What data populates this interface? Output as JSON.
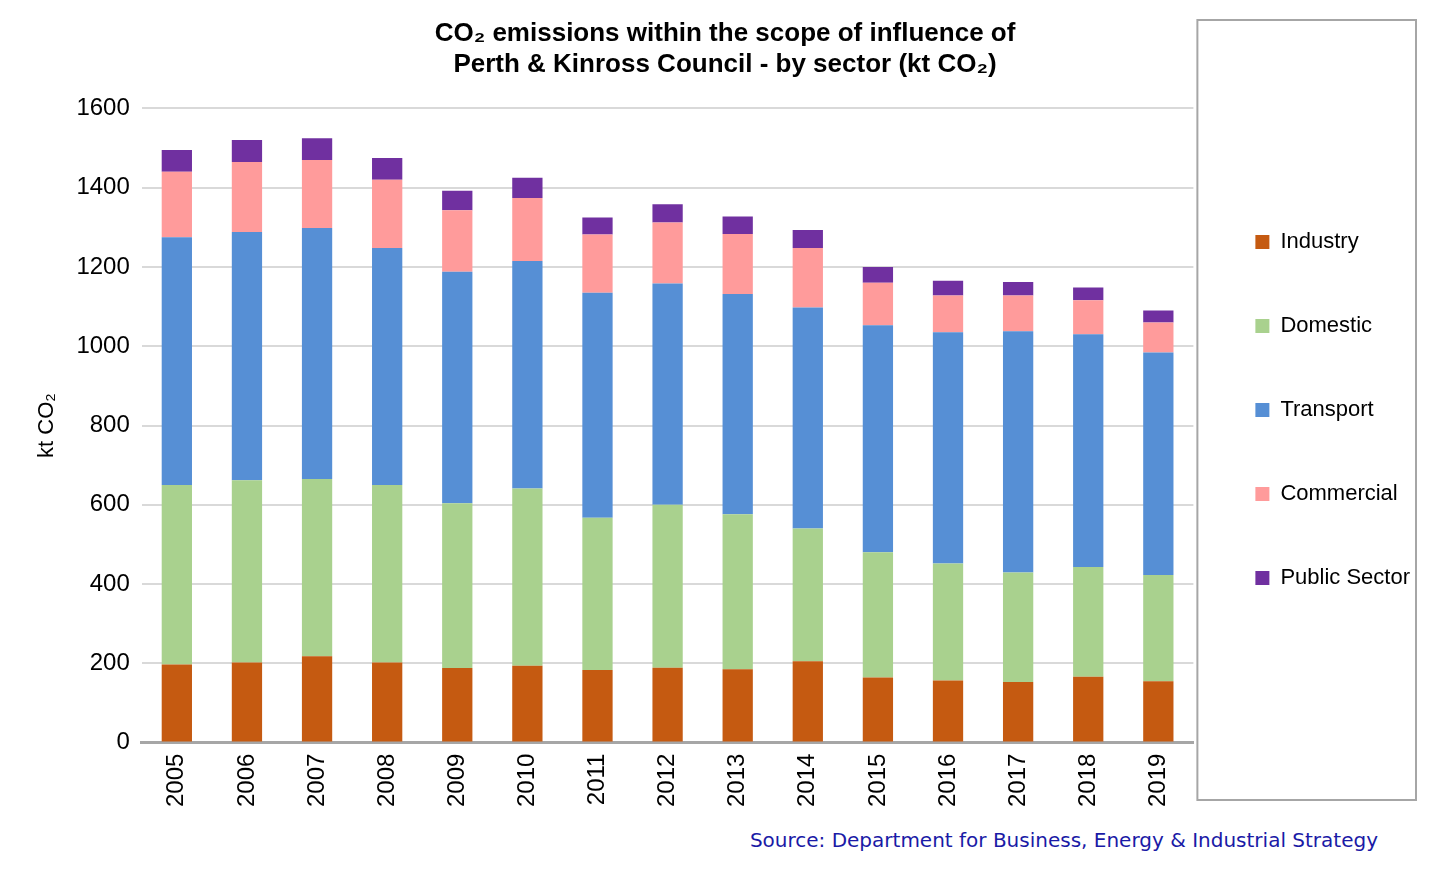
{
  "chart_data": {
    "type": "bar",
    "title": [
      "CO₂ emissions within the scope of influence of",
      "Perth & Kinross Council - by sector (kt CO₂)"
    ],
    "y_label": "kt CO₂",
    "source": "Source: Department for Business, Energy & Industrial Strategy",
    "categories": [
      "2005",
      "2006",
      "2007",
      "2008",
      "2009",
      "2010",
      "2011",
      "2012",
      "2013",
      "2014",
      "2015",
      "2016",
      "2017",
      "2018",
      "2019"
    ],
    "series": [
      {
        "name": "Industry",
        "color": "#c55a11",
        "values": [
          197,
          202,
          218,
          202,
          188,
          194,
          183,
          189,
          185,
          205,
          164,
          157,
          153,
          166,
          155
        ]
      },
      {
        "name": "Domestic",
        "color": "#a9d18e",
        "values": [
          453,
          460,
          447,
          448,
          416,
          447,
          384,
          411,
          391,
          335,
          316,
          295,
          276,
          277,
          268
        ]
      },
      {
        "name": "Transport",
        "color": "#568fd5",
        "values": [
          625,
          626,
          633,
          598,
          584,
          574,
          568,
          558,
          556,
          558,
          573,
          583,
          609,
          587,
          561
        ]
      },
      {
        "name": "Commercial",
        "color": "#ff9b9b",
        "values": [
          165,
          177,
          172,
          172,
          155,
          159,
          147,
          154,
          151,
          150,
          107,
          93,
          90,
          86,
          76
        ]
      },
      {
        "name": "Public Sector",
        "color": "#7030a0",
        "values": [
          55,
          55,
          55,
          55,
          49,
          51,
          43,
          46,
          44,
          45,
          40,
          37,
          34,
          32,
          30
        ]
      }
    ],
    "ylim": [
      0,
      1600
    ],
    "yticks": [
      0,
      200,
      400,
      600,
      800,
      1000,
      1200,
      1400,
      1600
    ],
    "stacked": true,
    "grid": true,
    "legend": "right"
  }
}
